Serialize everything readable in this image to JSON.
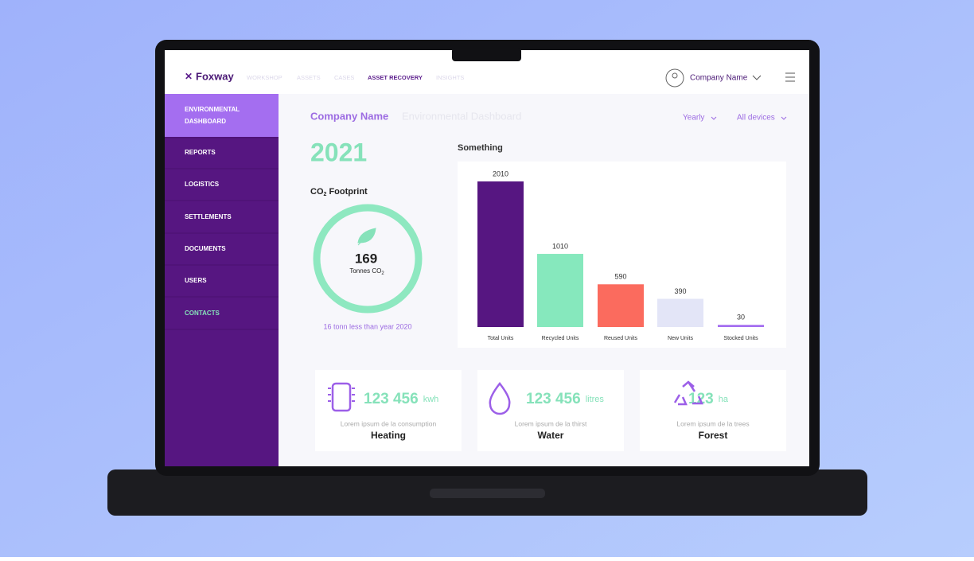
{
  "nav": {
    "logo": "Foxway",
    "items": [
      "WORKSHOP",
      "ASSETS",
      "CASES",
      "ASSET RECOVERY",
      "INSIGHTS"
    ],
    "active": 3,
    "account": "Company Name"
  },
  "sidebar": {
    "items": [
      "ENVIRONMENTAL",
      "DASHBOARD",
      "REPORTS",
      "LOGISTICS",
      "SETTLEMENTS",
      "DOCUMENTS",
      "USERS",
      "CONTACTS"
    ]
  },
  "header": {
    "company": "Company Name",
    "page": "Environmental Dashboard",
    "filters": [
      "Yearly",
      "All devices"
    ]
  },
  "year": "2021",
  "co2": {
    "title": "CO",
    "title_sub": "2",
    "title_rest": " Footprint",
    "value": "169",
    "unit": "Tonnes CO",
    "unit_sub": "2",
    "note": "16 tonn less than year 2020"
  },
  "chart_data": {
    "type": "bar",
    "title": "Something",
    "categories": [
      "Total Units",
      "Recycled Units",
      "Reused Units",
      "New Units",
      "Stocked Units"
    ],
    "values": [
      2010,
      1010,
      590,
      390,
      30
    ],
    "colors": [
      "#561681",
      "#86e8bd",
      "#fb6b5e",
      "#e3e5f7",
      "#a46ef0"
    ]
  },
  "stats": [
    {
      "value": "123 456",
      "unit": "kwh",
      "desc": "Lorem ipsum de la consumption",
      "name": "Heating"
    },
    {
      "value": "123 456",
      "unit": "litres",
      "desc": "Lorem ipsum de la thirst",
      "name": "Water"
    },
    {
      "value": "123",
      "unit": "ha",
      "desc": "Lorem ipsum de la trees",
      "name": "Forest"
    }
  ]
}
